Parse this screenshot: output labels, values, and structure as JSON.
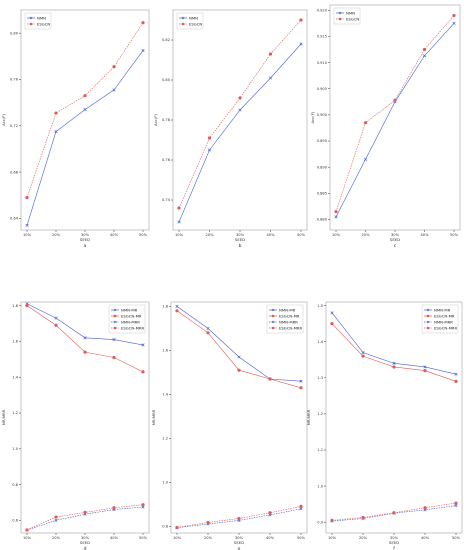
{
  "colors": {
    "blue": "#4a5fd6",
    "red": "#e05a5a",
    "axis": "#333333",
    "frame": "#b9b9b9"
  },
  "chart_data": [
    {
      "type": "line",
      "panel_label": "a",
      "categories": [
        "10%",
        "20%",
        "30%",
        "40%",
        "50%"
      ],
      "xlabel": "SEED",
      "ylabel": "Acc(F)",
      "ylim": [
        0.63,
        0.82
      ],
      "yticks": [
        0.64,
        0.68,
        0.72,
        0.76,
        0.8
      ],
      "ytick_labels": [
        "0.64",
        "0.68",
        "0.72",
        "0.76",
        "0.80"
      ],
      "legend": "upper-left",
      "series": [
        {
          "name": "NMN",
          "style": "solid",
          "color": "blue",
          "values": [
            0.634,
            0.715,
            0.734,
            0.751,
            0.785
          ]
        },
        {
          "name": "ESGCN",
          "style": "dashed",
          "color": "red",
          "values": [
            0.658,
            0.731,
            0.746,
            0.771,
            0.809
          ]
        }
      ]
    },
    {
      "type": "line",
      "panel_label": "b",
      "categories": [
        "10%",
        "20%",
        "30%",
        "40%",
        "50%"
      ],
      "xlabel": "SEED",
      "ylabel": "Acc(F)",
      "ylim": [
        0.725,
        0.835
      ],
      "yticks": [
        0.74,
        0.76,
        0.78,
        0.8,
        0.82
      ],
      "ytick_labels": [
        "0.74",
        "0.76",
        "0.78",
        "0.80",
        "0.82"
      ],
      "legend": "upper-left",
      "series": [
        {
          "name": "NMN",
          "style": "solid",
          "color": "blue",
          "values": [
            0.729,
            0.765,
            0.785,
            0.801,
            0.818
          ]
        },
        {
          "name": "ESGCN",
          "style": "dashed",
          "color": "red",
          "values": [
            0.736,
            0.771,
            0.791,
            0.813,
            0.83
          ]
        }
      ]
    },
    {
      "type": "line",
      "panel_label": "c",
      "categories": [
        "10%",
        "20%",
        "30%",
        "40%",
        "50%"
      ],
      "xlabel": "SEED",
      "ylabel": "Acc(F)",
      "ylim": [
        0.878,
        0.921
      ],
      "yticks": [
        0.88,
        0.885,
        0.89,
        0.895,
        0.9,
        0.905,
        0.91,
        0.915,
        0.92
      ],
      "ytick_labels": [
        "0.880",
        "0.885",
        "0.890",
        "0.895",
        "0.900",
        "0.905",
        "0.910",
        "0.915",
        "0.920"
      ],
      "legend": "upper-left",
      "series": [
        {
          "name": "NMN",
          "style": "solid",
          "color": "blue",
          "values": [
            0.8805,
            0.8915,
            0.9025,
            0.9113,
            0.9175
          ]
        },
        {
          "name": "ESGCN",
          "style": "dashed",
          "color": "red",
          "values": [
            0.8815,
            0.8985,
            0.9028,
            0.9125,
            0.919
          ]
        }
      ]
    },
    {
      "type": "line",
      "panel_label": "d",
      "categories": [
        "10%",
        "20%",
        "30%",
        "40%",
        "50%"
      ],
      "xlabel": "SEED",
      "ylabel": "MR/MRR",
      "ylim": [
        0.53,
        1.82
      ],
      "yticks": [
        0.6,
        0.8,
        1.0,
        1.2,
        1.4,
        1.6,
        1.8
      ],
      "ytick_labels": [
        "0.6",
        "0.8",
        "1.0",
        "1.2",
        "1.4",
        "1.6",
        "1.8"
      ],
      "legend": "upper-right",
      "series": [
        {
          "name": "NMN-MR",
          "style": "solid",
          "color": "blue",
          "values": [
            1.81,
            1.73,
            1.62,
            1.61,
            1.58
          ]
        },
        {
          "name": "ESGCN-MR",
          "style": "solid",
          "color": "red",
          "values": [
            1.8,
            1.69,
            1.54,
            1.51,
            1.43
          ]
        },
        {
          "name": "NMN-MRR",
          "style": "dashed",
          "color": "blue",
          "values": [
            0.546,
            0.601,
            0.635,
            0.661,
            0.675
          ]
        },
        {
          "name": "ESGCN-MRR",
          "style": "dashed",
          "color": "red",
          "values": [
            0.547,
            0.619,
            0.645,
            0.671,
            0.688
          ]
        }
      ]
    },
    {
      "type": "line",
      "panel_label": "e",
      "categories": [
        "10%",
        "20%",
        "30%",
        "40%",
        "50%"
      ],
      "xlabel": "SEED",
      "ylabel": "MR/MRR",
      "ylim": [
        0.77,
        1.82
      ],
      "yticks": [
        0.8,
        1.0,
        1.2,
        1.4,
        1.6,
        1.8
      ],
      "ytick_labels": [
        "0.8",
        "1.0",
        "1.2",
        "1.4",
        "1.6",
        "1.8"
      ],
      "legend": "upper-right",
      "series": [
        {
          "name": "NMN-MR",
          "style": "solid",
          "color": "blue",
          "values": [
            1.8,
            1.7,
            1.57,
            1.47,
            1.46
          ]
        },
        {
          "name": "ESGCN-MR",
          "style": "solid",
          "color": "red",
          "values": [
            1.78,
            1.68,
            1.51,
            1.47,
            1.43
          ]
        },
        {
          "name": "NMN-MRR",
          "style": "dashed",
          "color": "blue",
          "values": [
            0.794,
            0.811,
            0.827,
            0.852,
            0.88
          ]
        },
        {
          "name": "ESGCN-MRR",
          "style": "dashed",
          "color": "red",
          "values": [
            0.795,
            0.818,
            0.836,
            0.862,
            0.891
          ]
        }
      ]
    },
    {
      "type": "line",
      "panel_label": "f",
      "categories": [
        "10%",
        "20%",
        "30%",
        "40%",
        "50%"
      ],
      "xlabel": "SEED",
      "ylabel": "MR/MRR",
      "ylim": [
        0.87,
        1.51
      ],
      "yticks": [
        0.9,
        1.0,
        1.1,
        1.2,
        1.3,
        1.4,
        1.5
      ],
      "ytick_labels": [
        "0.9",
        "1.0",
        "1.1",
        "1.2",
        "1.3",
        "1.4",
        "1.5"
      ],
      "legend": "upper-right",
      "series": [
        {
          "name": "NMN-MR",
          "style": "solid",
          "color": "blue",
          "values": [
            1.48,
            1.37,
            1.34,
            1.33,
            1.31
          ]
        },
        {
          "name": "ESGCN-MR",
          "style": "solid",
          "color": "red",
          "values": [
            1.45,
            1.36,
            1.33,
            1.32,
            1.29
          ]
        },
        {
          "name": "NMN-MRR",
          "style": "dashed",
          "color": "blue",
          "values": [
            0.903,
            0.91,
            0.925,
            0.934,
            0.946
          ]
        },
        {
          "name": "ESGCN-MRR",
          "style": "dashed",
          "color": "red",
          "values": [
            0.905,
            0.913,
            0.926,
            0.94,
            0.953
          ]
        }
      ]
    }
  ]
}
